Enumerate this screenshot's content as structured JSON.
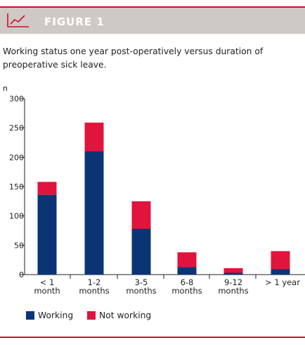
{
  "header": {
    "title": "FIGURE 1",
    "icon": "line-chart-icon"
  },
  "caption": "Working status one year post-operatively versus duration of preoperative sick leave.",
  "colors": {
    "accent": "#c8102e",
    "header_bg": "#cfc9c5",
    "working": "#0b3474",
    "not_working": "#e0143c"
  },
  "chart_data": {
    "type": "bar",
    "stacked": true,
    "title": "",
    "ylabel": "n",
    "xlabel": "",
    "ylim": [
      0,
      300
    ],
    "yticks": [
      0,
      50,
      100,
      150,
      200,
      250,
      300
    ],
    "categories": [
      [
        "< 1",
        "month"
      ],
      [
        "1-2",
        "months"
      ],
      [
        "3-5",
        "months"
      ],
      [
        "6-8",
        "months"
      ],
      [
        "9-12",
        "months"
      ],
      [
        "> 1 year"
      ]
    ],
    "series": [
      {
        "name": "Working",
        "color": "#0b3474",
        "values": [
          136,
          210,
          78,
          13,
          3,
          9
        ]
      },
      {
        "name": "Not working",
        "color": "#e0143c",
        "values": [
          22,
          49,
          47,
          25,
          8,
          31
        ]
      }
    ],
    "legend": "bottom-left",
    "grid": false
  }
}
